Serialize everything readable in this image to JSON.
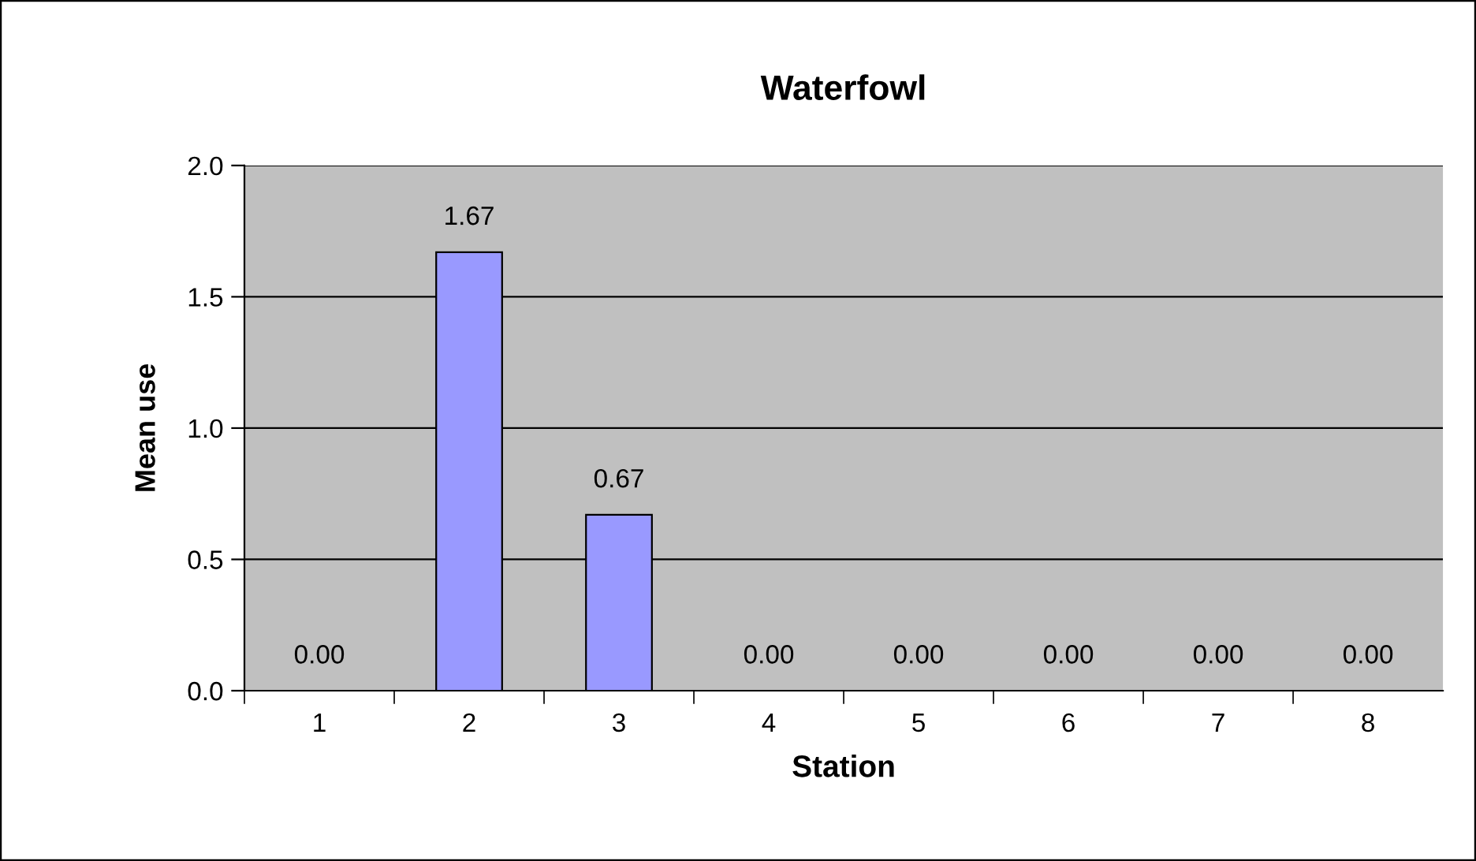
{
  "chart_data": {
    "type": "bar",
    "title": "Waterfowl",
    "xlabel": "Station",
    "ylabel": "Mean use",
    "categories": [
      "1",
      "2",
      "3",
      "4",
      "5",
      "6",
      "7",
      "8"
    ],
    "values": [
      0,
      1.67,
      0.67,
      0,
      0,
      0,
      0,
      0
    ],
    "color": "#9999ff",
    "value_labels": [
      "0.00",
      "1.67",
      "0.67",
      "0.00",
      "0.00",
      "0.00",
      "0.00",
      "0.00"
    ],
    "ylim": [
      0,
      2.0
    ],
    "yticks": [
      {
        "value": 0,
        "label": "0.0"
      },
      {
        "value": 0.5,
        "label": "0.5"
      },
      {
        "value": 1.0,
        "label": "1.0"
      },
      {
        "value": 1.5,
        "label": "1.5"
      },
      {
        "value": 2.0,
        "label": "2.0"
      }
    ],
    "grid": "y",
    "legend": false
  }
}
